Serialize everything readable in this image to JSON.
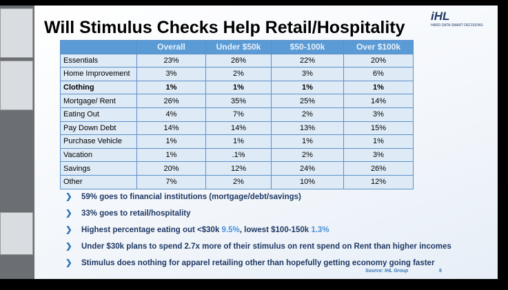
{
  "title": "Will Stimulus Checks Help Retail/Hospitality",
  "logo": {
    "mark": "iHL",
    "tagline": "HARD DATA.SMART DECISIONS"
  },
  "table": {
    "header": [
      "",
      "Overall",
      "Under $50k",
      "$50-100k",
      "Over $100k"
    ],
    "rows": [
      [
        "Essentials",
        "23%",
        "26%",
        "22%",
        "20%"
      ],
      [
        "Home Improvement",
        "3%",
        "2%",
        "3%",
        "6%"
      ],
      [
        "Clothing",
        "1%",
        "1%",
        "1%",
        "1%"
      ],
      [
        "Mortgage/ Rent",
        "26%",
        "35%",
        "25%",
        "14%"
      ],
      [
        "Eating Out",
        "4%",
        "7%",
        "2%",
        "3%"
      ],
      [
        "Pay Down Debt",
        "14%",
        "14%",
        "13%",
        "15%"
      ],
      [
        "Purchase Vehicle",
        "1%",
        "1%",
        "1%",
        "1%"
      ],
      [
        "Vacation",
        "1%",
        ".1%",
        "2%",
        "3%"
      ],
      [
        "Savings",
        "20%",
        "12%",
        "24%",
        "26%"
      ],
      [
        "Other",
        "7%",
        "2%",
        "10%",
        "12%"
      ]
    ]
  },
  "bullets": [
    [
      "59% goes to financial institutions (mortgage/debt/savings)"
    ],
    [
      "33% goes to retail/hospitality"
    ],
    [
      "Highest percentage eating out <$30k ",
      "9.5%",
      ", lowest $100-150k ",
      "1.3%"
    ],
    [
      "Under $30k plans to spend 2.7x more of their stimulus on rent spend on Rent than higher incomes"
    ],
    [
      "Stimulus does nothing for apparel retailing other than hopefully getting economy going faster"
    ]
  ],
  "source": "Source: IHL Group",
  "page_number": "8"
}
